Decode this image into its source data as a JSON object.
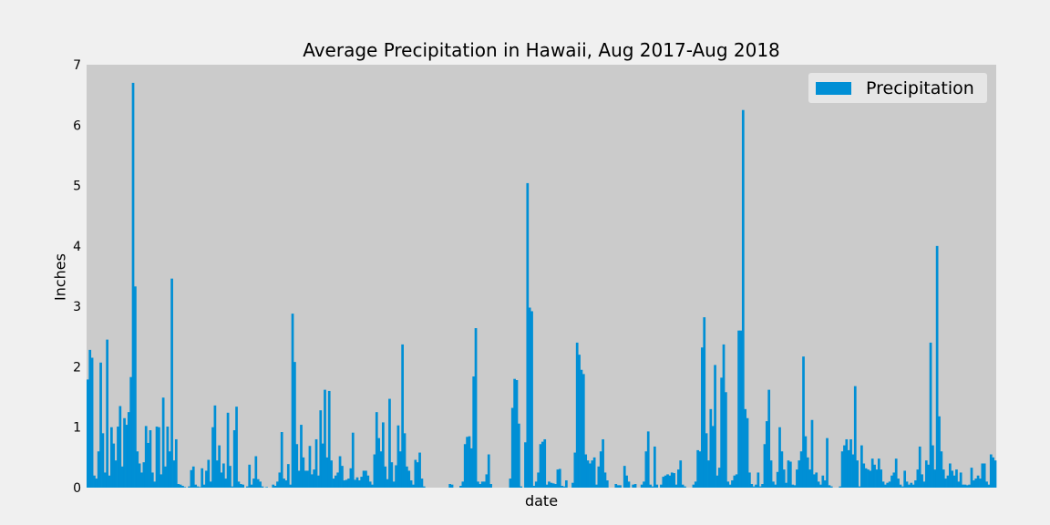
{
  "chart_data": {
    "type": "bar",
    "title": "Average Precipitation in Hawaii, Aug 2017-Aug 2018",
    "xlabel": "date",
    "ylabel": "Inches",
    "ylim": [
      0,
      7
    ],
    "yticks": [
      0,
      1,
      2,
      3,
      4,
      5,
      6,
      7
    ],
    "xticks": [],
    "grid": false,
    "legend_position": "top-right",
    "series": [
      {
        "name": "Precipitation",
        "color": "#008fd5",
        "values": [
          1.79,
          2.28,
          2.15,
          0.2,
          0.15,
          0.6,
          2.07,
          0.9,
          0.25,
          2.45,
          0.2,
          1.0,
          0.73,
          0.45,
          1.01,
          1.35,
          0.35,
          1.15,
          1.04,
          1.25,
          1.83,
          6.7,
          3.33,
          0.6,
          0.4,
          0.25,
          0.42,
          1.02,
          0.74,
          0.95,
          0.25,
          0.1,
          1.01,
          1.0,
          0.22,
          1.49,
          0.35,
          1.01,
          0.6,
          3.46,
          0.45,
          0.8,
          0.06,
          0.05,
          0.03,
          0.01,
          0.0,
          0.02,
          0.29,
          0.35,
          0.05,
          0.02,
          0.01,
          0.32,
          0.05,
          0.28,
          0.46,
          0.1,
          1.0,
          1.36,
          0.45,
          0.7,
          0.25,
          0.4,
          0.15,
          1.24,
          0.36,
          0.02,
          0.95,
          1.34,
          0.1,
          0.06,
          0.05,
          0.0,
          0.02,
          0.38,
          0.05,
          0.15,
          0.52,
          0.14,
          0.1,
          0.02,
          0.0,
          0.01,
          0.0,
          0.0,
          0.05,
          0.03,
          0.1,
          0.25,
          0.92,
          0.15,
          0.12,
          0.39,
          0.05,
          2.88,
          2.08,
          0.72,
          0.28,
          1.04,
          0.5,
          0.28,
          0.28,
          0.69,
          0.22,
          0.3,
          0.8,
          0.2,
          1.28,
          0.73,
          1.62,
          0.5,
          1.6,
          0.45,
          0.15,
          0.2,
          0.25,
          0.52,
          0.36,
          0.12,
          0.13,
          0.15,
          0.32,
          0.91,
          0.13,
          0.17,
          0.12,
          0.18,
          0.28,
          0.28,
          0.2,
          0.1,
          0.05,
          0.55,
          1.25,
          0.82,
          0.6,
          1.08,
          0.35,
          0.14,
          1.47,
          0.42,
          0.1,
          0.37,
          1.03,
          0.6,
          2.37,
          0.9,
          0.35,
          0.28,
          0.12,
          0.05,
          0.46,
          0.42,
          0.58,
          0.15,
          0.02,
          0.0,
          0.0,
          0.0,
          0.0,
          0.0,
          0.0,
          0.0,
          0.0,
          0.0,
          0.0,
          0.0,
          0.06,
          0.05,
          0.0,
          0.0,
          0.0,
          0.03,
          0.1,
          0.72,
          0.84,
          0.85,
          0.65,
          1.84,
          2.64,
          0.1,
          0.06,
          0.1,
          0.1,
          0.22,
          0.55,
          0.06,
          0.0,
          0.0,
          0.0,
          0.0,
          0.0,
          0.0,
          0.0,
          0.0,
          0.15,
          1.32,
          1.8,
          1.78,
          1.06,
          0.02,
          0.0,
          0.75,
          5.04,
          2.98,
          2.92,
          0.03,
          0.1,
          0.25,
          0.72,
          0.76,
          0.8,
          0.05,
          0.1,
          0.08,
          0.07,
          0.06,
          0.3,
          0.31,
          0.03,
          0.02,
          0.12,
          0.0,
          0.0,
          0.08,
          0.58,
          2.4,
          2.2,
          1.95,
          1.88,
          0.55,
          0.45,
          0.4,
          0.45,
          0.5,
          0.05,
          0.35,
          0.6,
          0.8,
          0.25,
          0.12,
          0.0,
          0.0,
          0.0,
          0.06,
          0.04,
          0.04,
          0.0,
          0.36,
          0.2,
          0.1,
          0.0,
          0.05,
          0.06,
          0.0,
          0.0,
          0.05,
          0.1,
          0.6,
          0.93,
          0.05,
          0.02,
          0.68,
          0.05,
          0.0,
          0.05,
          0.18,
          0.2,
          0.22,
          0.2,
          0.25,
          0.24,
          0.05,
          0.3,
          0.45,
          0.05,
          0.02,
          0.0,
          0.0,
          0.0,
          0.05,
          0.1,
          0.62,
          0.6,
          2.32,
          2.82,
          0.9,
          0.45,
          1.3,
          1.02,
          2.03,
          0.2,
          0.33,
          1.82,
          2.37,
          1.58,
          0.1,
          0.05,
          0.12,
          0.2,
          0.22,
          2.6,
          2.6,
          6.25,
          1.3,
          1.15,
          0.25,
          0.06,
          0.02,
          0.05,
          0.25,
          0.02,
          0.06,
          0.72,
          1.1,
          1.62,
          0.45,
          0.1,
          0.05,
          0.26,
          1.0,
          0.6,
          0.3,
          0.08,
          0.45,
          0.43,
          0.05,
          0.04,
          0.3,
          0.45,
          0.6,
          2.17,
          0.85,
          0.5,
          0.3,
          1.12,
          0.22,
          0.25,
          0.1,
          0.05,
          0.2,
          0.12,
          0.82,
          0.04,
          0.02,
          0.0,
          0.0,
          0.0,
          0.02,
          0.6,
          0.7,
          0.8,
          0.62,
          0.8,
          0.55,
          1.68,
          0.45,
          0.02,
          0.7,
          0.4,
          0.32,
          0.3,
          0.28,
          0.48,
          0.38,
          0.3,
          0.48,
          0.3,
          0.1,
          0.05,
          0.08,
          0.1,
          0.2,
          0.25,
          0.48,
          0.15,
          0.05,
          0.02,
          0.28,
          0.1,
          0.05,
          0.08,
          0.05,
          0.12,
          0.3,
          0.68,
          0.22,
          0.1,
          0.45,
          0.38,
          2.4,
          0.7,
          0.3,
          4.0,
          1.18,
          0.6,
          0.3,
          0.15,
          0.2,
          0.4,
          0.28,
          0.2,
          0.3,
          0.1,
          0.25,
          0.05,
          0.05,
          0.04,
          0.05,
          0.33,
          0.12,
          0.15,
          0.2,
          0.15,
          0.4,
          0.4,
          0.1,
          0.05,
          0.55,
          0.5,
          0.45
        ]
      }
    ]
  }
}
